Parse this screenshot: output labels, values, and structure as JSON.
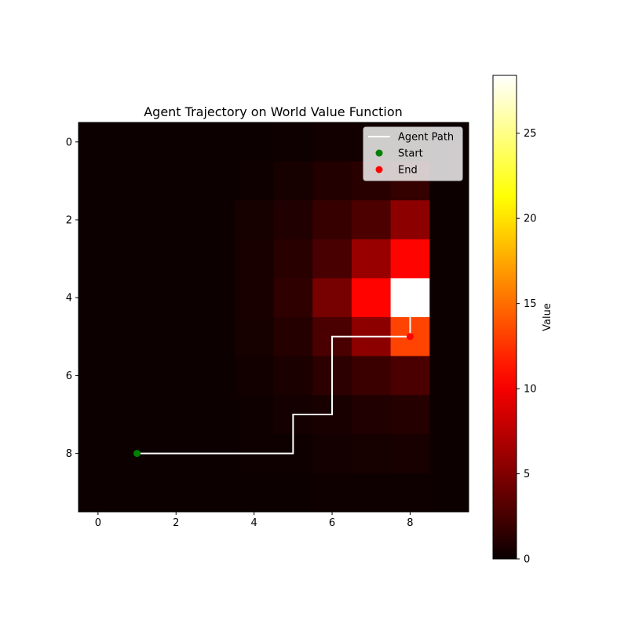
{
  "chart_data": {
    "type": "heatmap",
    "title": "Agent Trajectory on World Value Function",
    "grid": {
      "rows": 10,
      "cols": 10,
      "values": [
        [
          0.1,
          0.1,
          0.1,
          0.1,
          0.1,
          0.2,
          0.3,
          0.3,
          0.3,
          0.1
        ],
        [
          0.1,
          0.1,
          0.1,
          0.1,
          0.2,
          0.5,
          1.0,
          1.3,
          1.8,
          0.1
        ],
        [
          0.1,
          0.1,
          0.1,
          0.1,
          0.5,
          0.9,
          1.9,
          2.8,
          5.5,
          0.1
        ],
        [
          0.1,
          0.1,
          0.1,
          0.1,
          0.6,
          1.3,
          2.6,
          6.0,
          10.5,
          0.1
        ],
        [
          0.1,
          0.1,
          0.1,
          0.1,
          0.6,
          1.5,
          4.6,
          10.5,
          28.4,
          0.1
        ],
        [
          0.1,
          0.1,
          0.1,
          0.1,
          0.5,
          1.1,
          2.7,
          5.5,
          13.2,
          0.1
        ],
        [
          0.1,
          0.1,
          0.1,
          0.1,
          0.3,
          0.7,
          1.4,
          2.0,
          2.7,
          0.1
        ],
        [
          0.1,
          0.1,
          0.1,
          0.1,
          0.2,
          0.4,
          0.6,
          0.9,
          1.1,
          0.1
        ],
        [
          0.1,
          0.1,
          0.1,
          0.1,
          0.2,
          0.2,
          0.4,
          0.5,
          0.6,
          0.1
        ],
        [
          0.1,
          0.1,
          0.1,
          0.1,
          0.1,
          0.1,
          0.2,
          0.2,
          0.2,
          0.1
        ]
      ]
    },
    "x_ticks": [
      0,
      2,
      4,
      6,
      8
    ],
    "y_ticks": [
      0,
      2,
      4,
      6,
      8
    ],
    "xlim": [
      -0.5,
      9.5
    ],
    "ylim": [
      9.5,
      -0.5
    ],
    "colormap": "hot",
    "colorbar": {
      "label": "Value",
      "range": [
        0,
        28.4
      ],
      "ticks": [
        0,
        5,
        10,
        15,
        20,
        25
      ]
    },
    "series": [
      {
        "name": "Agent Path",
        "type": "line",
        "color": "#ffffff",
        "x": [
          1,
          5,
          5,
          6,
          6,
          8,
          8
        ],
        "y": [
          8,
          8,
          7,
          7,
          5,
          5,
          4.5
        ]
      },
      {
        "name": "Start",
        "type": "scatter",
        "color": "#008000",
        "x": [
          1
        ],
        "y": [
          8
        ]
      },
      {
        "name": "End",
        "type": "scatter",
        "color": "#ff0000",
        "x": [
          8
        ],
        "y": [
          5
        ]
      }
    ],
    "legend": {
      "position": "upper right",
      "entries": [
        "Agent Path",
        "Start",
        "End"
      ]
    }
  }
}
